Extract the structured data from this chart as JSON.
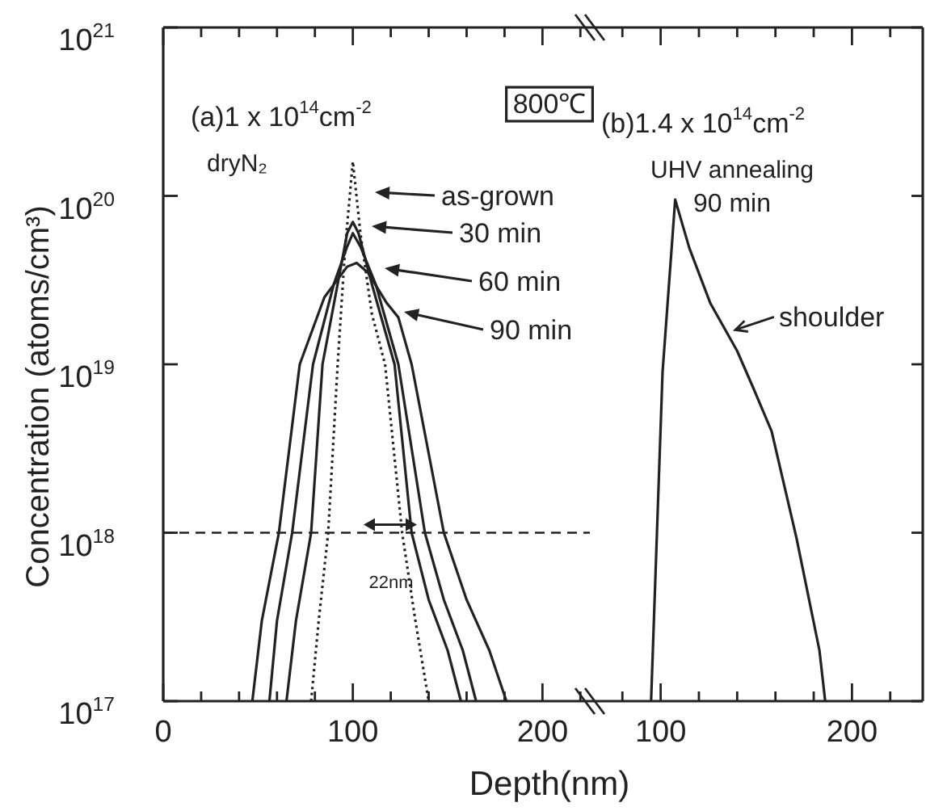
{
  "chart_data": [
    {
      "type": "line",
      "xlabel": "Depth(nm)",
      "ylabel": "Concentration (atoms/cm³)",
      "log": true,
      "xlim": [
        0,
        225
      ],
      "ylim": [
        1e+17,
        1e+21
      ],
      "xticks": [
        0,
        {
          "value": 20,
          "label": null
        },
        {
          "value": 40,
          "label": null
        },
        {
          "value": 60,
          "label": null
        },
        {
          "value": 80,
          "label": null
        },
        100,
        {
          "value": 120,
          "label": null
        },
        {
          "value": 140,
          "label": null
        },
        {
          "value": 160,
          "label": null
        },
        {
          "value": 180,
          "label": null
        },
        200,
        {
          "value": 220,
          "label": null
        }
      ],
      "yticks": [
        {
          "value": 1e+17,
          "label": "10$^{17}$"
        },
        {
          "value": 1e+18,
          "label": "10$^{18}$"
        },
        {
          "value": 1e+19,
          "label": "10$^{19}$"
        },
        {
          "value": 1e+20,
          "label": "10$^{20}$"
        },
        {
          "value": 1e+21,
          "label": "10$^{21}$"
        }
      ],
      "grid": false,
      "legend": "top right",
      "marker": "none",
      "series": [
        {
          "name": "as-grown",
          "color": "#222222",
          "line_style": "dotted",
          "x": [
            78,
            82,
            87,
            92,
            96,
            100,
            104,
            110,
            117,
            126,
            133,
            140
          ],
          "values": [
            1e+17,
            3e+17,
            1e+18,
            1e+19,
            5e+19,
            1.6e+20,
            6e+19,
            2e+19,
            1e+19,
            1e+18,
            3e+17,
            1e+17
          ]
        },
        {
          "name": "30 min",
          "color": "#222222",
          "line_style": "solid",
          "x": [
            65,
            70,
            78,
            84,
            92,
            97,
            100,
            103,
            110,
            122,
            131,
            140,
            150,
            157
          ],
          "values": [
            1e+17,
            3e+17,
            1e+18,
            1e+19,
            3e+19,
            6e+19,
            7e+19,
            6e+19,
            3e+19,
            1e+19,
            1e+18,
            4e+17,
            2e+17,
            1e+17
          ]
        },
        {
          "name": "60 min",
          "color": "#222222",
          "line_style": "solid",
          "x": [
            56,
            60,
            68,
            79,
            90,
            97,
            100,
            104,
            112,
            124,
            138,
            148,
            158,
            165
          ],
          "values": [
            1e+17,
            3e+17,
            1e+18,
            1e+19,
            3e+19,
            5e+19,
            6e+19,
            5e+19,
            3e+19,
            1e+19,
            1e+18,
            4e+17,
            2e+17,
            1e+17
          ]
        },
        {
          "name": "90 min",
          "color": "#222222",
          "line_style": "solid",
          "x": [
            47,
            52,
            61,
            72,
            85,
            97,
            102,
            108,
            118,
            124,
            131,
            148,
            160,
            172,
            181
          ],
          "values": [
            1e+17,
            3e+17,
            1e+18,
            1e+19,
            2.5e+19,
            3.8e+19,
            4e+19,
            3.5e+19,
            2.3e+19,
            1.9e+19,
            1e+19,
            1e+18,
            4e+17,
            2e+17,
            1e+17
          ]
        }
      ],
      "ref_lines": [
        {
          "axis": "y",
          "value": 1e+18,
          "line_style": "dashed"
        }
      ],
      "annotations": [
        "(a)1 x 10$^{14}$cm$^{-2}$",
        "dryN₂",
        "800℃",
        "22nm"
      ]
    },
    {
      "type": "line",
      "log": true,
      "tick_labels": "x",
      "xlim": [
        63,
        237
      ],
      "ylim": [
        1e+17,
        1e+21
      ],
      "xticks": [
        {
          "value": 80,
          "label": null
        },
        100,
        {
          "value": 120,
          "label": null
        },
        {
          "value": 140,
          "label": null
        },
        {
          "value": 160,
          "label": null
        },
        {
          "value": 180,
          "label": null
        },
        200,
        {
          "value": 220,
          "label": null
        }
      ],
      "yticks": [
        {
          "value": 1e+17,
          "label": null
        },
        {
          "value": 1e+18,
          "label": null
        },
        {
          "value": 1e+19,
          "label": null
        },
        {
          "value": 1e+20,
          "label": null
        },
        {
          "value": 1e+21,
          "label": null
        }
      ],
      "grid": false,
      "legend": false,
      "marker": "none",
      "series": [
        {
          "color": "#222222",
          "line_style": "solid",
          "x": [
            95,
            101,
            107.6,
            115,
            126,
            140,
            148.5,
            158,
            171,
            183,
            186
          ],
          "values": [
            1e+17,
            9e+18,
            9.5e+19,
            4.9e+19,
            2.3e+19,
            1.2e+19,
            7.2e+18,
            4e+18,
            9.3e+17,
            2e+17,
            1e+17
          ]
        }
      ],
      "annotations": [
        "(b)1.4 x 10$^{14}$cm$^{-2}$",
        "UHV annealing",
        "90 min",
        {
          "text": "shoulder",
          "x": 139,
          "y": 1.6e+19
        }
      ]
    }
  ]
}
